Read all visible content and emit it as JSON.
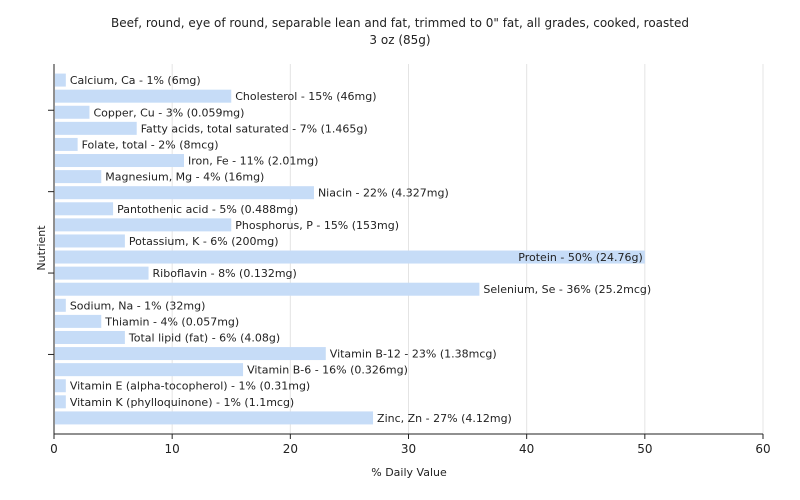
{
  "chart_data": {
    "type": "bar",
    "orientation": "horizontal",
    "title_line1": "Beef, round, eye of round, separable lean and fat, trimmed to 0\" fat, all grades, cooked, roasted",
    "title_line2": "3 oz (85g)",
    "xlabel": "% Daily Value",
    "ylabel": "Nutrient",
    "xlim": [
      0,
      60
    ],
    "xticks": [
      "0",
      "10",
      "20",
      "30",
      "40",
      "50",
      "60"
    ],
    "grid": true,
    "bar_color": "#c6dcf7",
    "categories": [
      "Calcium, Ca",
      "Cholesterol",
      "Copper, Cu",
      "Fatty acids, total saturated",
      "Folate, total",
      "Iron, Fe",
      "Magnesium, Mg",
      "Niacin",
      "Pantothenic acid",
      "Phosphorus, P",
      "Potassium, K",
      "Protein",
      "Riboflavin",
      "Selenium, Se",
      "Sodium, Na",
      "Thiamin",
      "Total lipid (fat)",
      "Vitamin B-12",
      "Vitamin B-6",
      "Vitamin E (alpha-tocopherol)",
      "Vitamin K (phylloquinone)",
      "Zinc, Zn"
    ],
    "values": [
      1,
      15,
      3,
      7,
      2,
      11,
      4,
      22,
      5,
      15,
      6,
      50,
      8,
      36,
      1,
      4,
      6,
      23,
      16,
      1,
      1,
      27
    ],
    "labels": [
      "Calcium, Ca - 1% (6mg)",
      "Cholesterol - 15% (46mg)",
      "Copper, Cu - 3% (0.059mg)",
      "Fatty acids, total saturated - 7% (1.465g)",
      "Folate, total - 2% (8mcg)",
      "Iron, Fe - 11% (2.01mg)",
      "Magnesium, Mg - 4% (16mg)",
      "Niacin - 22% (4.327mg)",
      "Pantothenic acid - 5% (0.488mg)",
      "Phosphorus, P - 15% (153mg)",
      "Potassium, K - 6% (200mg)",
      "Protein - 50% (24.76g)",
      "Riboflavin - 8% (0.132mg)",
      "Selenium, Se - 36% (25.2mcg)",
      "Sodium, Na - 1% (32mg)",
      "Thiamin - 4% (0.057mg)",
      "Total lipid (fat) - 6% (4.08g)",
      "Vitamin B-12 - 23% (1.38mcg)",
      "Vitamin B-6 - 16% (0.326mg)",
      "Vitamin E (alpha-tocopherol) - 1% (0.31mg)",
      "Vitamin K (phylloquinone) - 1% (1.1mcg)",
      "Zinc, Zn - 27% (4.12mg)"
    ]
  }
}
